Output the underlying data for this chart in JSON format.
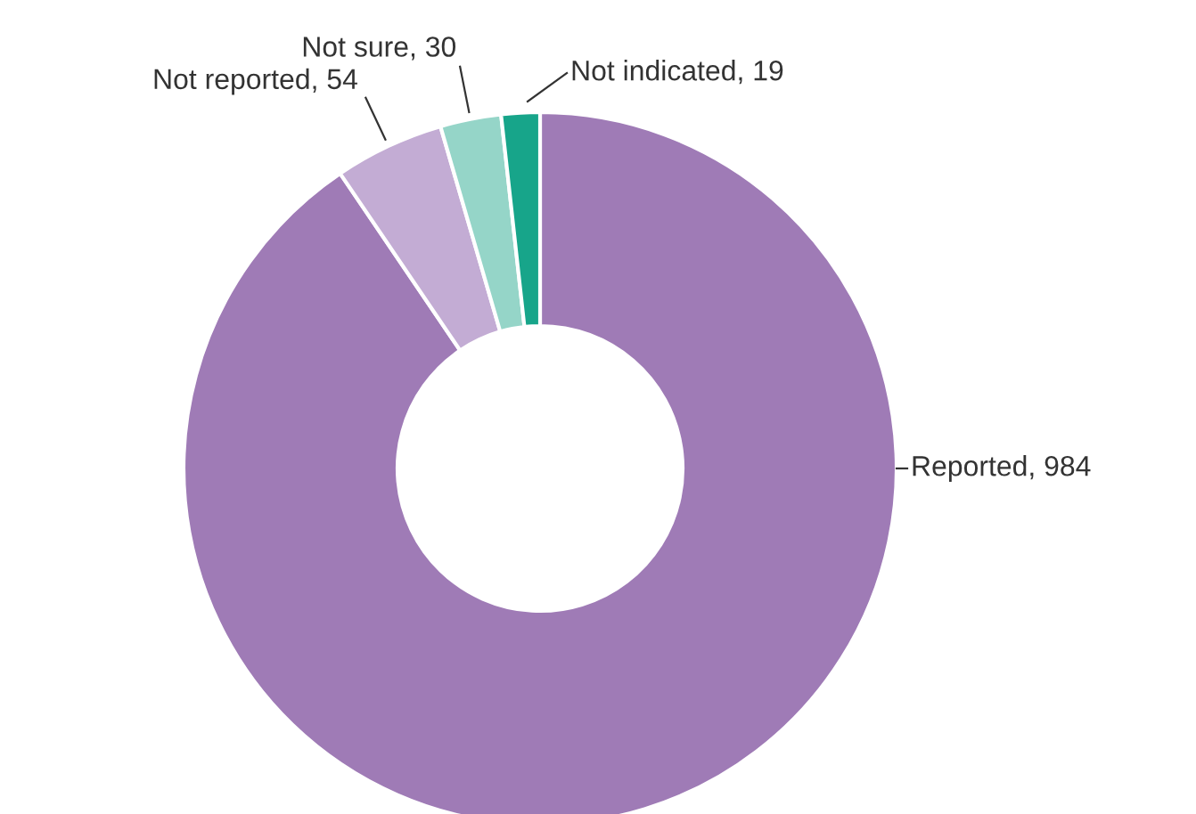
{
  "chart_data": {
    "type": "donut",
    "categories": [
      "Reported",
      "Not reported",
      "Not sure",
      "Not indicated"
    ],
    "values": [
      984,
      54,
      30,
      19
    ],
    "colors": [
      "#9f7bb6",
      "#c3acd4",
      "#95d5c8",
      "#17a58a"
    ],
    "value_labels": [
      ", 984",
      ", 54",
      ", 30",
      ", 19"
    ],
    "legend": false
  }
}
